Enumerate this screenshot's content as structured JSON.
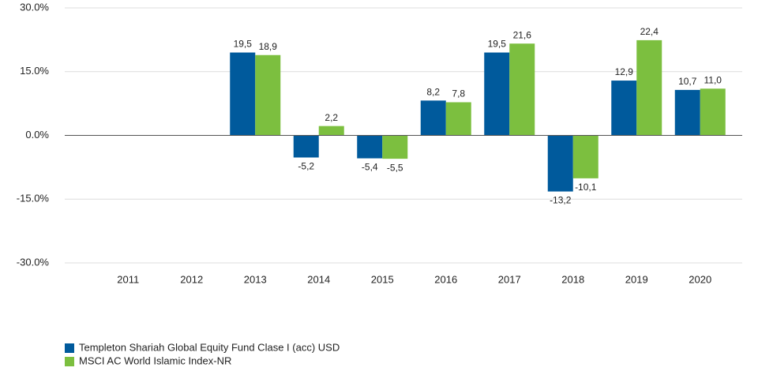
{
  "chart_data": {
    "type": "bar",
    "categories": [
      "2011",
      "2012",
      "2013",
      "2014",
      "2015",
      "2016",
      "2017",
      "2018",
      "2019",
      "2020"
    ],
    "series": [
      {
        "name": "Templeton Shariah Global Equity Fund Clase I (acc) USD",
        "color": "#005a9c",
        "values": [
          null,
          null,
          19.5,
          -5.2,
          -5.4,
          8.2,
          19.5,
          -13.2,
          12.9,
          10.7
        ],
        "value_labels": [
          null,
          null,
          "19,5",
          "-5,2",
          "-5,4",
          "8,2",
          "19,5",
          "-13,2",
          "12,9",
          "10,7"
        ]
      },
      {
        "name": "MSCI AC World Islamic Index-NR",
        "color": "#7cbf3f",
        "values": [
          null,
          null,
          18.9,
          2.2,
          -5.5,
          7.8,
          21.6,
          -10.1,
          22.4,
          11.0
        ],
        "value_labels": [
          null,
          null,
          "18,9",
          "2,2",
          "-5,5",
          "7,8",
          "21,6",
          "-10,1",
          "22,4",
          "11,0"
        ]
      }
    ],
    "ylim": [
      -30,
      30
    ],
    "yticks": [
      {
        "value": -30,
        "label": "-30.0%"
      },
      {
        "value": -15,
        "label": "-15.0%"
      },
      {
        "value": 0,
        "label": "0.0%"
      },
      {
        "value": 15,
        "label": "15.0%"
      },
      {
        "value": 30,
        "label": "30.0%"
      }
    ],
    "grid": true,
    "legend": "bottom-left"
  }
}
